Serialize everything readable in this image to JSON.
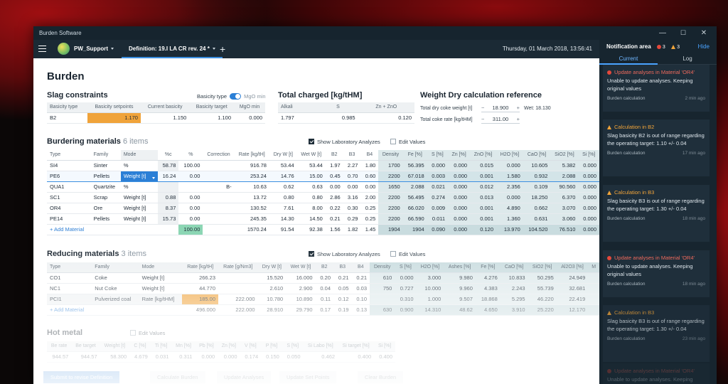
{
  "window": {
    "title": "Burden Software",
    "controls": [
      "—",
      "☐",
      "✕"
    ]
  },
  "appbar": {
    "user": "PW_Support",
    "tab": "Definition: 19.I LA CR rev. 24 *",
    "add": "+",
    "datetime": "Thursday, 01 March 2018, 13:56:41"
  },
  "page": {
    "title": "Burden"
  },
  "slag": {
    "title": "Slag constraints",
    "basicity_type_label": "Basicity type",
    "basicity_min_label": "MgO min",
    "headers": [
      "Basicity type",
      "Basicity setpoints",
      "Current basicity",
      "Basicity target",
      "MgO min"
    ],
    "row": [
      "B2",
      "1.170",
      "1.150",
      "1.100",
      "0.000"
    ]
  },
  "charged": {
    "title": "Total charged [kg/tHM]",
    "headers": [
      "Alkali",
      "S",
      "Zn + ZnO"
    ],
    "row": [
      "1.797",
      "0.985",
      "0.120"
    ]
  },
  "weight": {
    "title": "Weight Dry calculation reference",
    "coke_label": "Total dry coke weight [t]",
    "coke_value": "18.900",
    "wet_label": "Wet: 18.130",
    "rate_label": "Total coke rate [kg/tHM]",
    "rate_value": "311.00",
    "minus": "−",
    "plus": "+"
  },
  "bm": {
    "title": "Burdering materials",
    "count": "6 items",
    "show_lab": "Show Laboratory Analyzes",
    "edit_values": "Edit Values",
    "headers": [
      "Type",
      "Family",
      "Mode",
      "%c",
      "%",
      "Correction",
      "Rate [kg/tH]",
      "Dry W [t]",
      "Wet W [t]",
      "B2",
      "B3",
      "B4",
      "Density",
      "Fe [%]",
      "S [%]",
      "Zn [%]",
      "ZnO [%]",
      "H2O [%]",
      "CaO [%]",
      "SiO2 [%]",
      "Si [%]"
    ],
    "rows": [
      [
        "SI4",
        "Sinter",
        "%",
        "58.78",
        "100.00",
        "",
        "916.78",
        "53.44",
        "53.44",
        "1.97",
        "2.27",
        "1.80",
        "1700",
        "56.395",
        "0.000",
        "0.000",
        "0.015",
        "0.000",
        "10.605",
        "5.382",
        "0.000"
      ],
      [
        "PE6",
        "Pellets",
        "Weight [t]",
        "16.24",
        "0.00",
        "",
        "253.24",
        "14.76",
        "15.00",
        "0.45",
        "0.70",
        "0.60",
        "2200",
        "67.018",
        "0.003",
        "0.000",
        "0.001",
        "1.580",
        "0.932",
        "2.088",
        "0.000"
      ],
      [
        "QUA1",
        "Quartzite",
        "%",
        "",
        "",
        "B-",
        "10.63",
        "0.62",
        "0.63",
        "0.00",
        "0.00",
        "0.00",
        "1650",
        "2.088",
        "0.021",
        "0.000",
        "0.012",
        "2.356",
        "0.109",
        "90.560",
        "0.000"
      ],
      [
        "SC1",
        "Scrap",
        "Weight [t]",
        "0.88",
        "0.00",
        "",
        "13.72",
        "0.80",
        "0.80",
        "2.86",
        "3.16",
        "2.00",
        "2200",
        "56.495",
        "0.274",
        "0.000",
        "0.013",
        "0.000",
        "18.250",
        "6.370",
        "0.000"
      ],
      [
        "OR4",
        "Ore",
        "Weight [t]",
        "8.37",
        "0.00",
        "",
        "130.52",
        "7.61",
        "8.00",
        "0.22",
        "0.30",
        "0.25",
        "2200",
        "66.020",
        "0.009",
        "0.000",
        "0.001",
        "4.890",
        "0.662",
        "3.070",
        "0.000"
      ],
      [
        "PE14",
        "Pellets",
        "Weight [t]",
        "15.73",
        "0.00",
        "",
        "245.35",
        "14.30",
        "14.50",
        "0.21",
        "0.29",
        "0.25",
        "2200",
        "66.590",
        "0.011",
        "0.000",
        "0.001",
        "1.360",
        "0.631",
        "3.060",
        "0.000"
      ]
    ],
    "footer": [
      "+ Add Material",
      "",
      "",
      "",
      "100.00",
      "",
      "1570.24",
      "91.54",
      "92.38",
      "1.56",
      "1.82",
      "1.45",
      "1904",
      "1904",
      "0.090",
      "0.000",
      "0.120",
      "13.970",
      "104.520",
      "76.510",
      "0.000"
    ]
  },
  "rm": {
    "title": "Reducing materials",
    "count": "3 items",
    "show_lab": "Show Laboratory Analyzes",
    "edit_values": "Edit Values",
    "headers": [
      "Type",
      "Family",
      "Mode",
      "Rate [kg/tH]",
      "Rate [g/Nm3]",
      "Dry W [t]",
      "Wet W [t]",
      "B2",
      "B3",
      "B4",
      "Density",
      "S [%]",
      "H2O [%]",
      "Ashes [%]",
      "Fe [%]",
      "CaO [%]",
      "SiO2 [%]",
      "Al2O3 [%]",
      "M"
    ],
    "rows": [
      [
        "CO1",
        "Coke",
        "Weight [t]",
        "266.23",
        "",
        "15.520",
        "16.000",
        "0.20",
        "0.21",
        "0.21",
        "610",
        "0.000",
        "3.000",
        "9.980",
        "4.276",
        "10.833",
        "50.295",
        "24.949",
        ""
      ],
      [
        "NC1",
        "Nut Coke",
        "Weight [t]",
        "44.770",
        "",
        "2.610",
        "2.900",
        "0.04",
        "0.05",
        "0.03",
        "750",
        "0.727",
        "10.000",
        "9.960",
        "4.383",
        "2.243",
        "55.739",
        "32.681",
        ""
      ],
      [
        "PCI1",
        "Pulverized coal",
        "Rate [kg/tHM]",
        "185.00",
        "222.000",
        "10.780",
        "10.890",
        "0.11",
        "0.12",
        "0.10",
        "",
        "0.310",
        "1.000",
        "9.507",
        "18.868",
        "5.295",
        "46.220",
        "22.419",
        ""
      ]
    ],
    "footer": [
      "+ Add Material",
      "",
      "",
      "496.000",
      "222.000",
      "28.910",
      "29.790",
      "0.17",
      "0.19",
      "0.13",
      "630",
      "0.900",
      "14.310",
      "48.62",
      "4.650",
      "3.910",
      "25.220",
      "12.170",
      ""
    ]
  },
  "hm": {
    "title": "Hot metal",
    "edit_values": "Edit Values",
    "headers": [
      "Be rate",
      "Be target",
      "Weight [t]",
      "C [%]",
      "Ti [%]",
      "Mn [%]",
      "Pb [%]",
      "Zn [%]",
      "V [%]",
      "P [%]",
      "S [%]",
      "Si Labo [%]",
      "Si target [%]",
      "Si [%]"
    ],
    "row": [
      "944.57",
      "944.57",
      "58.300",
      "4.679",
      "0.031",
      "0.311",
      "0.000",
      "0.000",
      "0.174",
      "0.150",
      "0.050",
      "0.462",
      "0.400",
      "0.400"
    ]
  },
  "actions": [
    "Submit to revise Definition",
    "Calculate Burden",
    "Update Analyses",
    "Update Set Points",
    "Clear Burden"
  ],
  "notif": {
    "title": "Notification area",
    "errors": "3",
    "warnings": "3",
    "hide": "Hide",
    "tab_current": "Current",
    "tab_log": "Log",
    "items": [
      {
        "title": "Update analyses in Material 'OR4'",
        "desc": "Unable to update analyses. Keeping original values",
        "src": "Burden calculation",
        "time": "2 min ago",
        "kind": "error"
      },
      {
        "title": "Calculation in B2",
        "desc": "Slag basicity B2 is out of range regarding the operating target: 1.10 +/- 0.04",
        "src": "Burden calculation",
        "time": "17 min ago",
        "kind": "warn"
      },
      {
        "title": "Calculation in B3",
        "desc": "Slag basicity B3 is out of range regarding the operating target: 1.30 +/- 0.04",
        "src": "Burden calculation",
        "time": "18 min ago",
        "kind": "warn"
      },
      {
        "title": "Update analyses in Material 'OR4'",
        "desc": "Unable to update analyses. Keeping original values",
        "src": "Burden calculation",
        "time": "18 min ago",
        "kind": "error"
      },
      {
        "title": "Calculation in B3",
        "desc": "Slag basicity B3 is out of range regarding the operating target: 1.30 +/- 0.04",
        "src": "Burden calculation",
        "time": "23 min ago",
        "kind": "warn"
      },
      {
        "title": "Update analyses in Material 'OR4'",
        "desc": "Unable to update analyses. Keeping original values",
        "src": "",
        "time": "",
        "kind": "error"
      }
    ]
  },
  "colors": {
    "accent": "#2b7fd6",
    "highlight": "#f0a33a",
    "green": "#8cd6b4",
    "dark": "#17252f"
  }
}
